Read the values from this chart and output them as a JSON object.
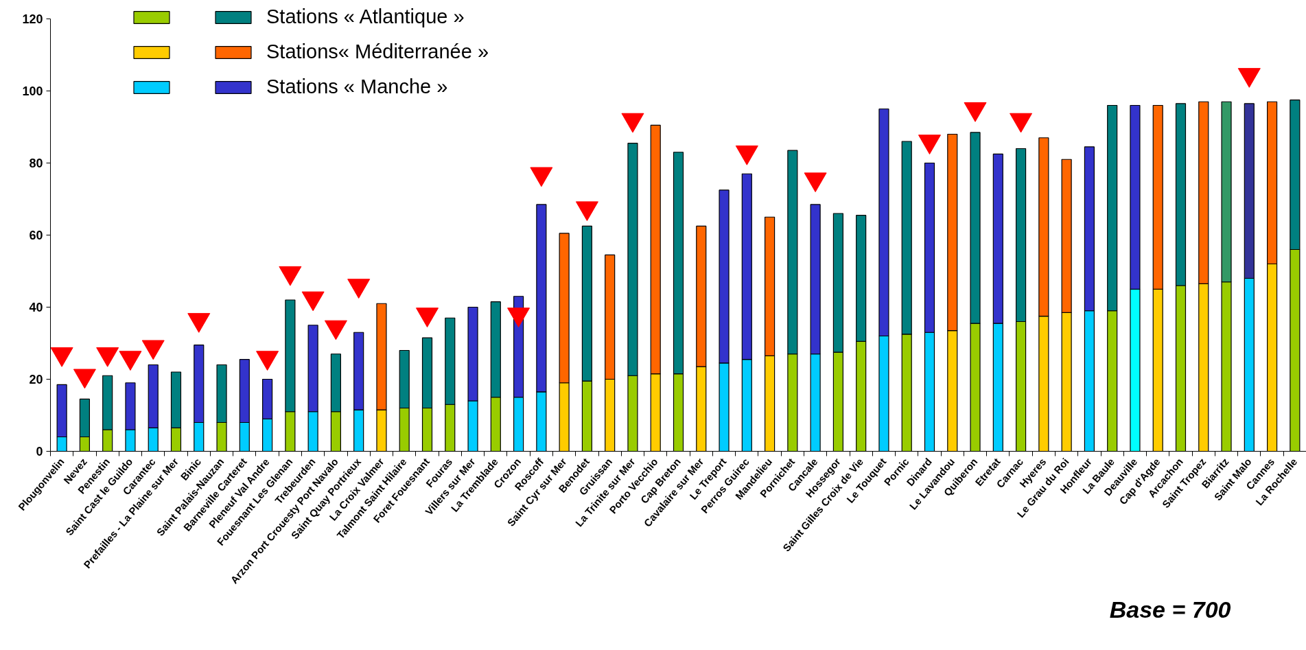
{
  "chart_data": {
    "type": "bar",
    "stacked": true,
    "categories": [
      "Plougonvelin",
      "Nevez",
      "Penestin",
      "Saint Cast le Guildo",
      "Carantec",
      "Prefailles - La Plaine sur Mer",
      "Binic",
      "Saint Palais-Nauzan",
      "Barneville Carteret",
      "Pleneuf Val Andre",
      "Fouesnant Les Glenan",
      "Trebeurden",
      "Arzon Port Crouesty Port Navalo",
      "Saint Quay Portrieux",
      "La Croix Valmer",
      "Talmont Saint Hilaire",
      "Foret Fouesnant",
      "Fouras",
      "Villers sur Mer",
      "La Tremblade",
      "Crozon",
      "Roscoff",
      "Saint Cyr sur Mer",
      "Benodet",
      "Gruissan",
      "La Trinite sur Mer",
      "Porto Vecchio",
      "Cap Breton",
      "Cavalaire sur Mer",
      "Le Treport",
      "Perros Guirec",
      "Mandelieu",
      "Pornichet",
      "Cancale",
      "Hossegor",
      "Saint Gilles Croix de Vie",
      "Le Touquet",
      "Pornic",
      "Dinard",
      "Le Lavandou",
      "Quiberon",
      "Etretat",
      "Carnac",
      "Hyeres",
      "Le Grau du Roi",
      "Honfleur",
      "La Baule",
      "Deauville",
      "Cap d'Agde",
      "Arcachon",
      "Saint Tropez",
      "Biarritz",
      "Saint Malo",
      "Cannes",
      "La Rochelle"
    ],
    "series": [
      {
        "color": "#99cc00",
        "values": [
          null,
          4,
          6,
          null,
          null,
          6.5,
          null,
          8,
          null,
          null,
          11,
          null,
          11,
          null,
          null,
          12,
          12,
          13,
          null,
          15,
          null,
          null,
          null,
          19.5,
          null,
          21,
          null,
          21.5,
          null,
          null,
          null,
          null,
          27,
          null,
          27.5,
          30.5,
          null,
          32.5,
          null,
          null,
          35.5,
          null,
          36,
          null,
          null,
          null,
          39,
          null,
          null,
          46,
          null,
          47,
          null,
          null,
          56
        ]
      },
      {
        "color": "#ffcc00",
        "values": [
          null,
          null,
          null,
          null,
          null,
          null,
          null,
          null,
          null,
          null,
          null,
          null,
          null,
          null,
          11.5,
          null,
          null,
          null,
          null,
          null,
          null,
          null,
          19,
          null,
          20,
          null,
          21.5,
          null,
          23.5,
          null,
          null,
          26.5,
          null,
          null,
          null,
          null,
          null,
          null,
          null,
          33.5,
          null,
          null,
          null,
          37.5,
          38.5,
          null,
          null,
          null,
          45,
          null,
          46.5,
          null,
          null,
          52,
          null
        ]
      },
      {
        "color": "#00ccff",
        "colors": [
          null,
          null,
          null,
          null,
          null,
          null,
          null,
          null,
          null,
          null,
          null,
          null,
          null,
          null,
          null,
          null,
          null,
          null,
          null,
          null,
          null,
          null,
          null,
          null,
          null,
          null,
          null,
          null,
          null,
          null,
          null,
          null,
          null,
          null,
          null,
          null,
          null,
          null,
          null,
          null,
          null,
          null,
          null,
          null,
          null,
          null,
          null,
          "#00ffff",
          null,
          null,
          null,
          null,
          null,
          null,
          null
        ],
        "values": [
          4,
          null,
          null,
          6,
          6.5,
          null,
          8,
          null,
          8,
          9,
          null,
          11,
          null,
          11.5,
          null,
          null,
          null,
          null,
          14,
          null,
          15,
          16.5,
          null,
          null,
          null,
          null,
          null,
          null,
          null,
          24.5,
          25.5,
          null,
          null,
          27,
          null,
          null,
          32,
          null,
          33,
          null,
          null,
          35.5,
          null,
          null,
          null,
          39,
          null,
          45,
          null,
          null,
          null,
          null,
          48,
          null,
          null
        ]
      },
      {
        "name": "Stations « Atlantique »",
        "color": "#008080",
        "colors": [
          null,
          null,
          null,
          null,
          null,
          null,
          null,
          null,
          null,
          null,
          null,
          null,
          null,
          null,
          null,
          null,
          null,
          null,
          null,
          null,
          null,
          null,
          null,
          null,
          null,
          null,
          null,
          null,
          null,
          null,
          null,
          null,
          null,
          null,
          null,
          null,
          null,
          null,
          null,
          null,
          null,
          null,
          null,
          null,
          null,
          null,
          null,
          null,
          null,
          null,
          null,
          "#339966",
          null,
          null,
          null
        ],
        "values": [
          null,
          10.5,
          15,
          null,
          null,
          15.5,
          null,
          16,
          null,
          null,
          31,
          null,
          16,
          null,
          null,
          16,
          19.5,
          24,
          null,
          26.5,
          null,
          null,
          null,
          43,
          null,
          64.5,
          null,
          61.5,
          null,
          null,
          null,
          null,
          56.5,
          null,
          38.5,
          35,
          null,
          53.5,
          null,
          null,
          53,
          null,
          48,
          null,
          null,
          null,
          57,
          null,
          null,
          50.5,
          null,
          50,
          null,
          null,
          41.5
        ]
      },
      {
        "name": "Stations« Méditerranée »",
        "color": "#ff6600",
        "values": [
          null,
          null,
          null,
          null,
          null,
          null,
          null,
          null,
          null,
          null,
          null,
          null,
          null,
          null,
          29.5,
          null,
          null,
          null,
          null,
          null,
          null,
          null,
          41.5,
          null,
          34.5,
          null,
          69,
          null,
          39,
          null,
          null,
          38.5,
          null,
          null,
          null,
          null,
          null,
          null,
          null,
          54.5,
          null,
          null,
          null,
          49.5,
          42.5,
          null,
          null,
          null,
          51,
          null,
          50.5,
          null,
          null,
          45,
          null
        ]
      },
      {
        "name": "Stations « Manche »",
        "color": "#3333cc",
        "colors": [
          null,
          null,
          null,
          null,
          null,
          null,
          null,
          null,
          null,
          null,
          null,
          null,
          null,
          null,
          null,
          null,
          null,
          null,
          null,
          null,
          null,
          null,
          null,
          null,
          null,
          null,
          null,
          null,
          null,
          null,
          null,
          null,
          null,
          null,
          null,
          null,
          null,
          null,
          null,
          null,
          null,
          null,
          null,
          null,
          null,
          null,
          null,
          null,
          null,
          null,
          null,
          null,
          "#333399",
          null,
          null
        ],
        "values": [
          14.5,
          null,
          null,
          13,
          17.5,
          null,
          21.5,
          null,
          17.5,
          11,
          null,
          24,
          null,
          21.5,
          null,
          null,
          null,
          null,
          26,
          null,
          28,
          52,
          null,
          null,
          null,
          null,
          null,
          null,
          null,
          48,
          51.5,
          null,
          null,
          41.5,
          null,
          null,
          63,
          null,
          47,
          null,
          null,
          47,
          null,
          null,
          null,
          45.5,
          null,
          51,
          null,
          null,
          null,
          null,
          48.5,
          null,
          null
        ]
      },
      {
        "type": "scatter",
        "marker": "triangle",
        "color": "#ff0000",
        "values": [
          27,
          21,
          27,
          26,
          29,
          null,
          36.5,
          null,
          null,
          26,
          49.5,
          42.5,
          34.5,
          46,
          null,
          null,
          38,
          null,
          null,
          null,
          38,
          77,
          null,
          67.5,
          null,
          92,
          null,
          null,
          null,
          null,
          83,
          null,
          null,
          75.5,
          null,
          null,
          null,
          null,
          86,
          null,
          95,
          null,
          92,
          null,
          null,
          null,
          null,
          null,
          null,
          null,
          null,
          null,
          104.5,
          null,
          null
        ]
      }
    ],
    "ylim": [
      0,
      120
    ],
    "yticks": [
      0,
      20,
      40,
      60,
      80,
      100,
      120
    ],
    "legend": "top left",
    "grid": false,
    "annotations": [
      "Base = 700"
    ]
  }
}
